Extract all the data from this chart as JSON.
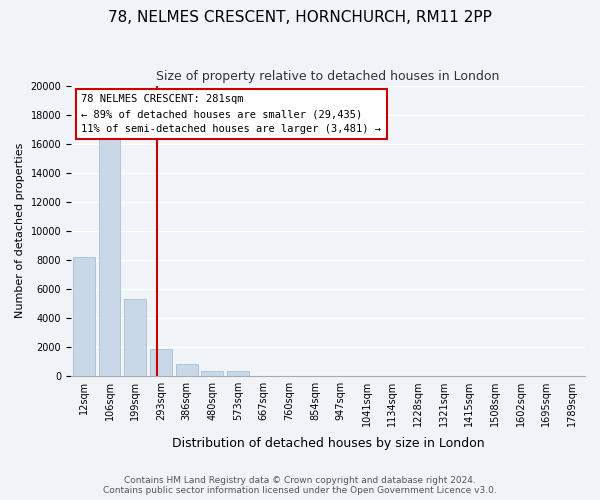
{
  "title": "78, NELMES CRESCENT, HORNCHURCH, RM11 2PP",
  "subtitle": "Size of property relative to detached houses in London",
  "xlabel": "Distribution of detached houses by size in London",
  "ylabel": "Number of detached properties",
  "bar_values": [
    8200,
    16500,
    5300,
    1800,
    800,
    300,
    300,
    0,
    0,
    0,
    0,
    0,
    0,
    0,
    0,
    0,
    0,
    0,
    0,
    0
  ],
  "categories": [
    "12sqm",
    "106sqm",
    "199sqm",
    "293sqm",
    "386sqm",
    "480sqm",
    "573sqm",
    "667sqm",
    "760sqm",
    "854sqm",
    "947sqm",
    "1041sqm",
    "1134sqm",
    "1228sqm",
    "1321sqm",
    "1415sqm",
    "1508sqm",
    "1602sqm",
    "1695sqm",
    "1789sqm"
  ],
  "bar_color": "#c8d8e8",
  "bar_edge_color": "#a0b8cc",
  "property_line_x": 2.85,
  "property_line_color": "#cc0000",
  "annotation_title": "78 NELMES CRESCENT: 281sqm",
  "annotation_line1": "← 89% of detached houses are smaller (29,435)",
  "annotation_line2": "11% of semi-detached houses are larger (3,481) →",
  "annotation_box_color": "#ffffff",
  "annotation_box_edge": "#cc0000",
  "ylim": [
    0,
    20000
  ],
  "yticks": [
    0,
    2000,
    4000,
    6000,
    8000,
    10000,
    12000,
    14000,
    16000,
    18000,
    20000
  ],
  "footer_line1": "Contains HM Land Registry data © Crown copyright and database right 2024.",
  "footer_line2": "Contains public sector information licensed under the Open Government Licence v3.0.",
  "bg_color": "#f0f4f8",
  "plot_bg_color": "#f0f4f8",
  "title_fontsize": 11,
  "subtitle_fontsize": 9,
  "xlabel_fontsize": 9,
  "ylabel_fontsize": 8,
  "tick_fontsize": 7,
  "footer_fontsize": 6.5
}
